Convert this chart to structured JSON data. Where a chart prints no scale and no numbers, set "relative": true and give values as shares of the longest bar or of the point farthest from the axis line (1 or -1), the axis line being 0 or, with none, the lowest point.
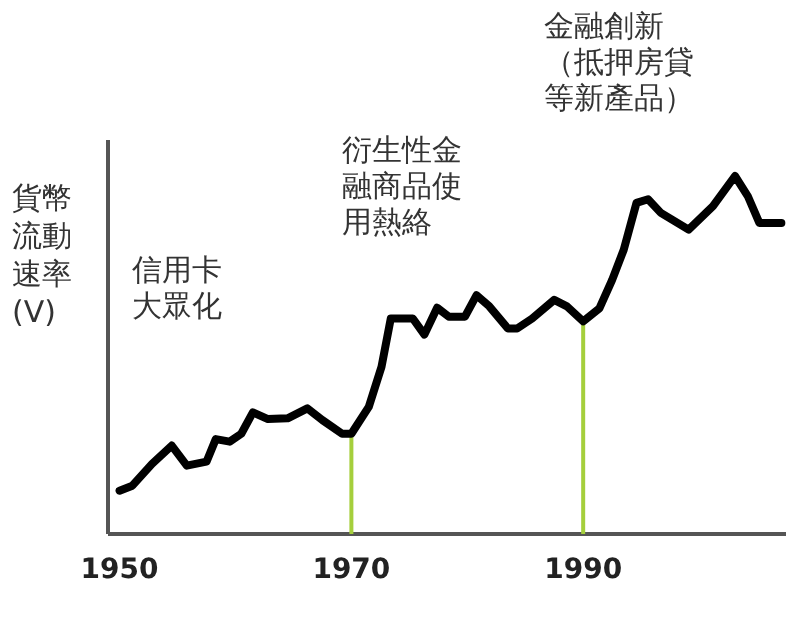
{
  "chart_data": {
    "type": "line",
    "relative": true,
    "ylabel": "貨幣流動速率(V)",
    "x": [
      1950,
      1951.1,
      1952.8,
      1954.5,
      1955.8,
      1957.5,
      1958.3,
      1959.5,
      1960.5,
      1961.5,
      1962.8,
      1964.5,
      1966.2,
      1967.5,
      1969.2,
      1970,
      1971.5,
      1972.6,
      1973.4,
      1975.3,
      1976.3,
      1977.4,
      1978.4,
      1979.8,
      1980.8,
      1981.9,
      1983.5,
      1984.3,
      1985.6,
      1987.5,
      1988.6,
      1990,
      1991.4,
      1992.5,
      1993.5,
      1994.6,
      1995.6,
      1996.7,
      1999.1,
      2001.2,
      2003.1,
      2004.2,
      2005.2,
      2007.1
    ],
    "series": [
      {
        "color": "#000000",
        "values": [
          0.121,
          0.135,
          0.196,
          0.247,
          0.191,
          0.202,
          0.265,
          0.258,
          0.28,
          0.34,
          0.321,
          0.323,
          0.351,
          0.318,
          0.28,
          0.28,
          0.355,
          0.467,
          0.602,
          0.602,
          0.557,
          0.632,
          0.607,
          0.607,
          0.667,
          0.636,
          0.574,
          0.574,
          0.602,
          0.654,
          0.636,
          0.594,
          0.63,
          0.71,
          0.794,
          0.925,
          0.935,
          0.897,
          0.85,
          0.916,
          1.0,
          0.944,
          0.869,
          0.869
        ]
      }
    ],
    "xlim": [
      1949,
      2007.5
    ],
    "xticks": [
      1950,
      1970,
      1990
    ],
    "tick_labels": "x",
    "line_style": "solid",
    "annotations": [
      "信用卡大眾化",
      "衍生性金融商品使用熱絡",
      "金融創新（抵押房貸等新產品）"
    ],
    "ref_lines": [
      {
        "axis": "x",
        "value": 1970,
        "color": "#a5cf3c"
      },
      {
        "axis": "x",
        "value": 1990,
        "color": "#a5cf3c"
      }
    ]
  }
}
